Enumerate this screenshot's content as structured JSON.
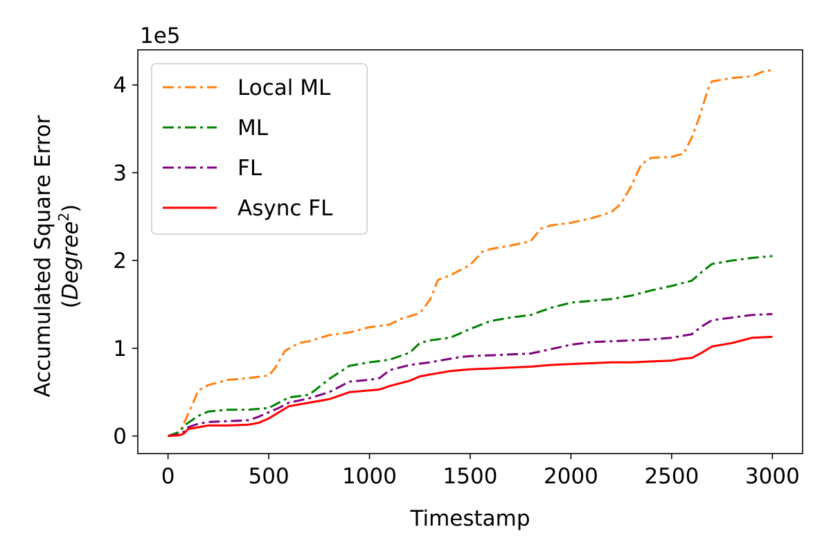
{
  "chart_data": {
    "type": "line",
    "xlabel": "Timestamp",
    "ylabel": "Accumulated Square Error",
    "ylabel_unit_base": "Degree",
    "ylabel_unit_exp": "2",
    "y_offset_text": "1e5",
    "xlim": [
      -150,
      3150
    ],
    "ylim": [
      -0.2,
      4.4
    ],
    "xticks": [
      0,
      500,
      1000,
      1500,
      2000,
      2500,
      3000
    ],
    "xtick_labels": [
      "0",
      "500",
      "1000",
      "1500",
      "2000",
      "2500",
      "3000"
    ],
    "yticks": [
      0,
      1,
      2,
      3,
      4
    ],
    "ytick_labels": [
      "0",
      "1",
      "2",
      "3",
      "4"
    ],
    "grid": false,
    "legend_position": "top-left",
    "series": [
      {
        "name": "Local ML",
        "color": "#ff7f0e",
        "dash": "dashdot",
        "x": [
          0,
          60,
          80,
          120,
          150,
          200,
          300,
          400,
          500,
          530,
          580,
          650,
          700,
          800,
          900,
          1000,
          1100,
          1150,
          1250,
          1300,
          1340,
          1400,
          1500,
          1560,
          1600,
          1700,
          1800,
          1850,
          1900,
          2000,
          2100,
          2200,
          2250,
          2300,
          2350,
          2400,
          2500,
          2560,
          2600,
          2640,
          2680,
          2700,
          2750,
          2800,
          2900,
          2950,
          3000
        ],
        "y": [
          0,
          0.05,
          0.15,
          0.35,
          0.52,
          0.58,
          0.64,
          0.66,
          0.69,
          0.77,
          0.97,
          1.06,
          1.08,
          1.15,
          1.18,
          1.24,
          1.27,
          1.33,
          1.4,
          1.55,
          1.78,
          1.83,
          1.95,
          2.1,
          2.13,
          2.17,
          2.22,
          2.36,
          2.4,
          2.43,
          2.48,
          2.55,
          2.65,
          2.85,
          3.1,
          3.17,
          3.18,
          3.22,
          3.4,
          3.65,
          3.95,
          4.04,
          4.06,
          4.08,
          4.1,
          4.15,
          4.17
        ]
      },
      {
        "name": "ML",
        "color": "#008000",
        "dash": "dashdot",
        "x": [
          0,
          60,
          80,
          100,
          150,
          200,
          250,
          300,
          400,
          500,
          550,
          600,
          700,
          800,
          900,
          1000,
          1100,
          1200,
          1250,
          1300,
          1400,
          1450,
          1500,
          1600,
          1700,
          1800,
          1900,
          2000,
          2100,
          2200,
          2300,
          2400,
          2500,
          2600,
          2650,
          2700,
          2800,
          2900,
          3000
        ],
        "y": [
          0,
          0.05,
          0.12,
          0.15,
          0.23,
          0.28,
          0.29,
          0.3,
          0.3,
          0.32,
          0.38,
          0.44,
          0.47,
          0.65,
          0.8,
          0.84,
          0.87,
          0.95,
          1.06,
          1.09,
          1.12,
          1.17,
          1.22,
          1.31,
          1.35,
          1.38,
          1.46,
          1.52,
          1.54,
          1.56,
          1.6,
          1.66,
          1.71,
          1.77,
          1.87,
          1.96,
          2.0,
          2.03,
          2.05
        ]
      },
      {
        "name": "FL",
        "color": "#800080",
        "dash": "dashdot",
        "x": [
          0,
          60,
          80,
          100,
          150,
          200,
          300,
          400,
          450,
          500,
          550,
          600,
          700,
          800,
          900,
          1000,
          1050,
          1100,
          1200,
          1300,
          1400,
          1450,
          1500,
          1600,
          1700,
          1800,
          1900,
          2000,
          2100,
          2200,
          2300,
          2400,
          2500,
          2600,
          2650,
          2700,
          2800,
          2900,
          3000
        ],
        "y": [
          0,
          0.02,
          0.05,
          0.1,
          0.14,
          0.16,
          0.17,
          0.18,
          0.22,
          0.27,
          0.32,
          0.38,
          0.43,
          0.5,
          0.62,
          0.64,
          0.66,
          0.75,
          0.81,
          0.84,
          0.88,
          0.9,
          0.91,
          0.92,
          0.93,
          0.94,
          0.99,
          1.04,
          1.07,
          1.08,
          1.09,
          1.1,
          1.12,
          1.16,
          1.25,
          1.32,
          1.35,
          1.38,
          1.39
        ]
      },
      {
        "name": "Async FL",
        "color": "#ff0000",
        "dash": "solid",
        "x": [
          0,
          60,
          80,
          100,
          150,
          200,
          300,
          400,
          450,
          500,
          550,
          600,
          700,
          800,
          850,
          900,
          1000,
          1050,
          1100,
          1200,
          1250,
          1300,
          1400,
          1500,
          1600,
          1700,
          1800,
          1900,
          2000,
          2100,
          2200,
          2300,
          2400,
          2500,
          2550,
          2600,
          2650,
          2700,
          2800,
          2850,
          2900,
          3000
        ],
        "y": [
          0,
          0.01,
          0.03,
          0.08,
          0.1,
          0.12,
          0.12,
          0.13,
          0.15,
          0.2,
          0.27,
          0.34,
          0.38,
          0.42,
          0.46,
          0.5,
          0.52,
          0.53,
          0.57,
          0.63,
          0.68,
          0.7,
          0.74,
          0.76,
          0.77,
          0.78,
          0.79,
          0.81,
          0.82,
          0.83,
          0.84,
          0.84,
          0.85,
          0.86,
          0.88,
          0.89,
          0.95,
          1.02,
          1.06,
          1.09,
          1.12,
          1.13
        ]
      }
    ]
  }
}
